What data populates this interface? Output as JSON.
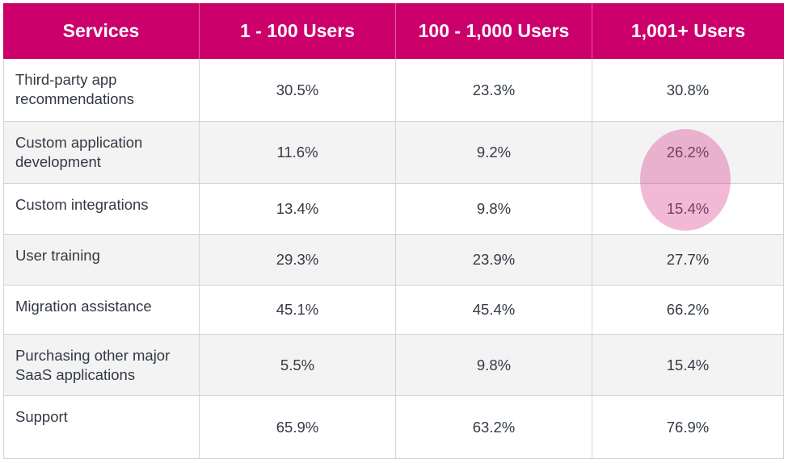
{
  "chart_data": {
    "type": "table",
    "columns": [
      "Services",
      "1 - 100 Users",
      "100 - 1,000 Users",
      "1,001+ Users"
    ],
    "rows": [
      {
        "service": "Third-party app recommendations",
        "values": [
          "30.5%",
          "23.3%",
          "30.8%"
        ]
      },
      {
        "service": "Custom application development",
        "values": [
          "11.6%",
          "9.2%",
          "26.2%"
        ]
      },
      {
        "service": "Custom integrations",
        "values": [
          "13.4%",
          "9.8%",
          "15.4%"
        ]
      },
      {
        "service": "User training",
        "values": [
          "29.3%",
          "23.9%",
          "27.7%"
        ]
      },
      {
        "service": "Migration assistance",
        "values": [
          "45.1%",
          "45.4%",
          "66.2%"
        ]
      },
      {
        "service": "Purchasing other major SaaS applications",
        "values": [
          "5.5%",
          "9.8%",
          "15.4%"
        ]
      },
      {
        "service": "Support",
        "values": [
          "65.9%",
          "63.2%",
          "76.9%"
        ]
      }
    ],
    "highlighted_cells": [
      "1,001+ Users: Custom application development",
      "1,001+ Users: Custom integrations"
    ],
    "colors": {
      "header_bg": "#cc006a",
      "header_text": "#ffffff",
      "alt_row_bg": "#f3f3f3",
      "highlight": "#db4894"
    }
  }
}
